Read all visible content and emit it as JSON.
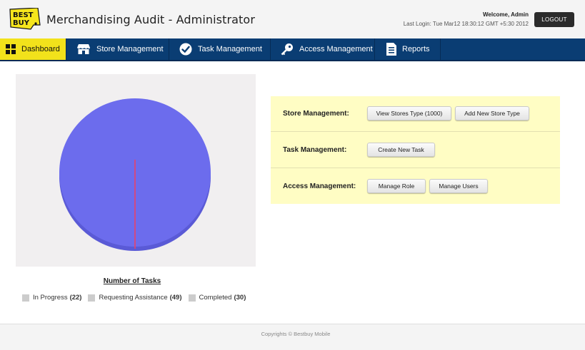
{
  "header": {
    "logo_text_1": "BEST",
    "logo_text_2": "BUY",
    "title": "Merchandising Audit - Administrator",
    "welcome": "Welcome, Admin",
    "last_login": "Last Login: Tue Mar12 18:30:12 GMT +5:30 2012",
    "logout_label": "LOGOUT"
  },
  "nav": {
    "items": [
      {
        "label": "Dashboard",
        "icon": "grid-icon",
        "active": true
      },
      {
        "label": "Store Management",
        "icon": "store-icon"
      },
      {
        "label": "Task Management",
        "icon": "checkmark-icon"
      },
      {
        "label": "Access Management",
        "icon": "key-icon"
      },
      {
        "label": "Reports",
        "icon": "document-icon"
      }
    ]
  },
  "chart": {
    "title": "Number of Tasks"
  },
  "chart_data": {
    "type": "pie",
    "categories": [
      "In Progress",
      "Requesting Assistance",
      "Completed"
    ],
    "values": [
      22,
      49,
      30
    ],
    "rendered_values": [
      0,
      1,
      0
    ],
    "colors": [
      "#cccccc",
      "#6c6ced",
      "#cccccc"
    ],
    "title": "Number of Tasks",
    "legend_position": "bottom"
  },
  "legend": [
    {
      "label": "In Progress",
      "count": "(22)"
    },
    {
      "label": "Requesting Assistance",
      "count": "(49)"
    },
    {
      "label": "Completed",
      "count": "(30)"
    }
  ],
  "actions": {
    "store": {
      "label": "Store Management:",
      "view_btn": "View Stores Type (1000)",
      "add_btn": "Add New Store Type"
    },
    "task": {
      "label": "Task Management:",
      "create_btn": "Create New Task"
    },
    "access": {
      "label": "Access Management:",
      "role_btn": "Manage Role",
      "users_btn": "Manage Users"
    }
  },
  "footer": {
    "copyright": "Copyrights © Bestbuy Mobile"
  },
  "colors": {
    "nav_bg": "#0a3d73",
    "nav_active": "#f2e21b",
    "pie_fill": "#6c6ced",
    "pie_line": "#e8416a",
    "actions_bg": "#fffdc4"
  }
}
